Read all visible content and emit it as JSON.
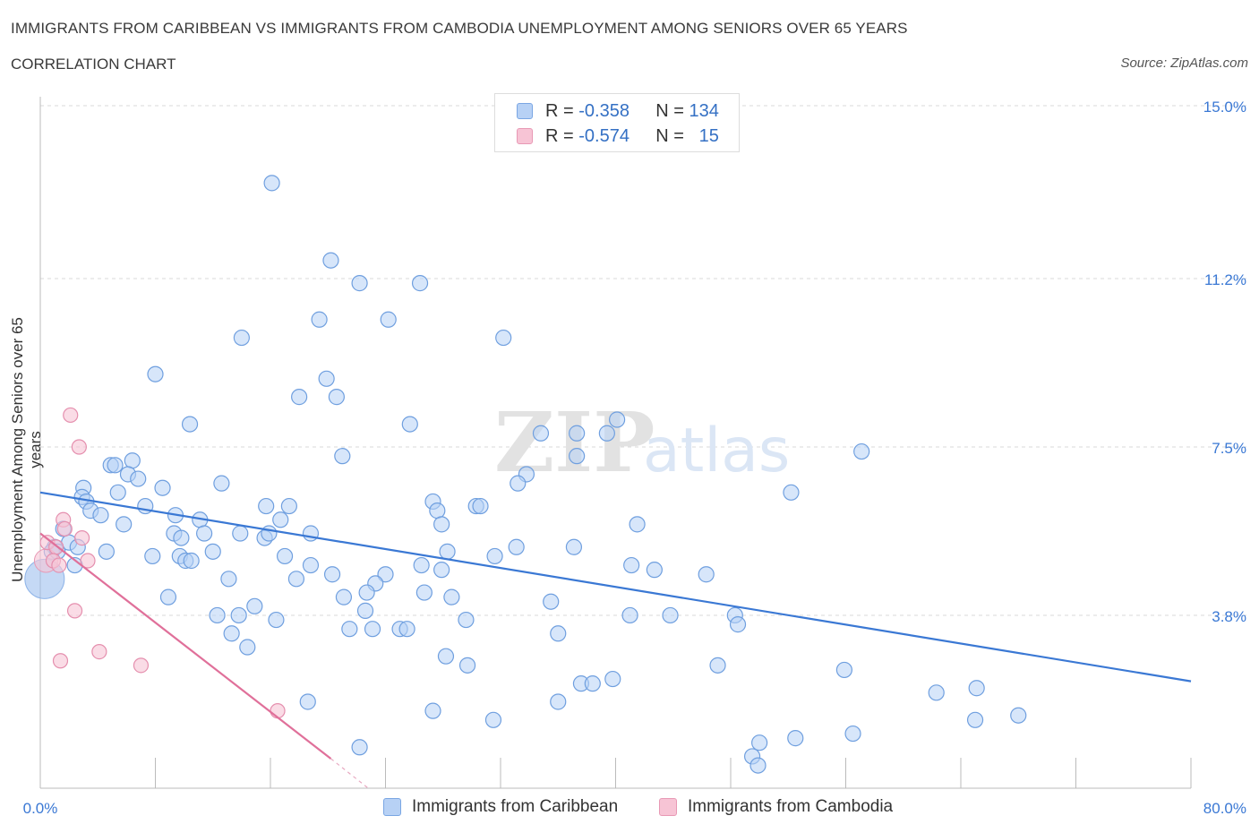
{
  "header": {
    "title": "IMMIGRANTS FROM CARIBBEAN VS IMMIGRANTS FROM CAMBODIA UNEMPLOYMENT AMONG SENIORS OVER 65 YEARS",
    "subtitle": "CORRELATION CHART",
    "source": "Source: ZipAtlas.com"
  },
  "watermark": {
    "zip": "ZIP",
    "atlas": "atlas"
  },
  "legend": {
    "r_label": "R =",
    "n_label": "N =",
    "items": [
      {
        "name": "Immigrants from Caribbean",
        "r": "-0.358",
        "n": "134",
        "fill": "#b7d1f5",
        "stroke": "#7aa6e3"
      },
      {
        "name": "Immigrants from Cambodia",
        "r": "-0.574",
        "n": "15",
        "fill": "#f7c4d5",
        "stroke": "#e899b5"
      }
    ]
  },
  "chart_data": {
    "type": "scatter",
    "ylabel": "Unemployment Among Seniors over 65 years",
    "xlim": [
      0,
      80
    ],
    "ylim": [
      0,
      15
    ],
    "x_tick_labels": [
      "0.0%",
      "80.0%"
    ],
    "y_ticks": [
      {
        "value": 3.8,
        "label": "3.8%"
      },
      {
        "value": 7.5,
        "label": "7.5%"
      },
      {
        "value": 11.2,
        "label": "11.2%"
      },
      {
        "value": 15.0,
        "label": "15.0%"
      }
    ],
    "grid": true,
    "legend_position": "top-center",
    "colors": {
      "caribbean": "#3a78d4",
      "cambodia": "#e0709a"
    },
    "series": [
      {
        "name": "Immigrants from Caribbean",
        "trend": {
          "x": [
            0,
            80
          ],
          "y": [
            6.5,
            2.35
          ]
        },
        "points": [
          [
            16.1,
            13.3
          ],
          [
            20.2,
            11.6
          ],
          [
            22.2,
            11.1
          ],
          [
            26.4,
            11.1
          ],
          [
            19.4,
            10.3
          ],
          [
            24.2,
            10.3
          ],
          [
            14.0,
            9.9
          ],
          [
            32.2,
            9.9
          ],
          [
            8.0,
            9.1
          ],
          [
            19.9,
            9.0
          ],
          [
            18.0,
            8.6
          ],
          [
            20.6,
            8.6
          ],
          [
            10.4,
            8.0
          ],
          [
            25.7,
            8.0
          ],
          [
            40.1,
            8.1
          ],
          [
            34.8,
            7.8
          ],
          [
            37.3,
            7.8
          ],
          [
            39.4,
            7.8
          ],
          [
            57.1,
            7.4
          ],
          [
            21.0,
            7.3
          ],
          [
            37.3,
            7.3
          ],
          [
            6.4,
            7.2
          ],
          [
            4.9,
            7.1
          ],
          [
            5.2,
            7.1
          ],
          [
            6.1,
            6.9
          ],
          [
            33.8,
            6.9
          ],
          [
            6.8,
            6.8
          ],
          [
            12.6,
            6.7
          ],
          [
            33.2,
            6.7
          ],
          [
            3.0,
            6.6
          ],
          [
            8.5,
            6.6
          ],
          [
            52.2,
            6.5
          ],
          [
            2.9,
            6.4
          ],
          [
            5.4,
            6.5
          ],
          [
            3.2,
            6.3
          ],
          [
            27.3,
            6.3
          ],
          [
            30.3,
            6.2
          ],
          [
            15.7,
            6.2
          ],
          [
            17.3,
            6.2
          ],
          [
            27.6,
            6.1
          ],
          [
            30.6,
            6.2
          ],
          [
            3.5,
            6.1
          ],
          [
            4.2,
            6.0
          ],
          [
            7.3,
            6.2
          ],
          [
            9.4,
            6.0
          ],
          [
            11.1,
            5.9
          ],
          [
            16.7,
            5.9
          ],
          [
            5.8,
            5.8
          ],
          [
            27.9,
            5.8
          ],
          [
            41.5,
            5.8
          ],
          [
            1.6,
            5.7
          ],
          [
            9.3,
            5.6
          ],
          [
            9.8,
            5.5
          ],
          [
            11.4,
            5.6
          ],
          [
            13.9,
            5.6
          ],
          [
            15.6,
            5.5
          ],
          [
            15.9,
            5.6
          ],
          [
            18.8,
            5.6
          ],
          [
            1.0,
            5.3
          ],
          [
            2.0,
            5.4
          ],
          [
            2.6,
            5.3
          ],
          [
            4.6,
            5.2
          ],
          [
            7.8,
            5.1
          ],
          [
            9.7,
            5.1
          ],
          [
            10.1,
            5.0
          ],
          [
            10.5,
            5.0
          ],
          [
            12.0,
            5.2
          ],
          [
            17.0,
            5.1
          ],
          [
            28.3,
            5.2
          ],
          [
            31.6,
            5.1
          ],
          [
            33.1,
            5.3
          ],
          [
            37.1,
            5.3
          ],
          [
            0.8,
            5.2
          ],
          [
            1.2,
            5.2
          ],
          [
            2.4,
            4.9
          ],
          [
            18.8,
            4.9
          ],
          [
            24.0,
            4.7
          ],
          [
            26.5,
            4.9
          ],
          [
            27.9,
            4.8
          ],
          [
            41.1,
            4.9
          ],
          [
            42.7,
            4.8
          ],
          [
            46.3,
            4.7
          ],
          [
            13.1,
            4.6
          ],
          [
            17.8,
            4.6
          ],
          [
            20.3,
            4.7
          ],
          [
            23.3,
            4.5
          ],
          [
            26.7,
            4.3
          ],
          [
            28.6,
            4.2
          ],
          [
            8.9,
            4.2
          ],
          [
            21.1,
            4.2
          ],
          [
            22.7,
            4.3
          ],
          [
            35.5,
            4.1
          ],
          [
            12.3,
            3.8
          ],
          [
            13.8,
            3.8
          ],
          [
            14.9,
            4.0
          ],
          [
            16.4,
            3.7
          ],
          [
            22.6,
            3.9
          ],
          [
            29.6,
            3.7
          ],
          [
            41.0,
            3.8
          ],
          [
            43.8,
            3.8
          ],
          [
            48.3,
            3.8
          ],
          [
            48.5,
            3.6
          ],
          [
            13.3,
            3.4
          ],
          [
            21.5,
            3.5
          ],
          [
            23.1,
            3.5
          ],
          [
            25.0,
            3.5
          ],
          [
            25.5,
            3.5
          ],
          [
            36.0,
            3.4
          ],
          [
            14.4,
            3.1
          ],
          [
            28.2,
            2.9
          ],
          [
            29.7,
            2.7
          ],
          [
            47.1,
            2.7
          ],
          [
            55.9,
            2.6
          ],
          [
            37.6,
            2.3
          ],
          [
            38.4,
            2.3
          ],
          [
            39.8,
            2.4
          ],
          [
            36.0,
            1.9
          ],
          [
            18.6,
            1.9
          ],
          [
            27.3,
            1.7
          ],
          [
            62.3,
            2.1
          ],
          [
            65.1,
            2.2
          ],
          [
            31.5,
            1.5
          ],
          [
            65.0,
            1.5
          ],
          [
            68.0,
            1.6
          ],
          [
            22.2,
            0.9
          ],
          [
            50.0,
            1.0
          ],
          [
            52.5,
            1.1
          ],
          [
            49.5,
            0.7
          ],
          [
            49.9,
            0.5
          ],
          [
            56.5,
            1.2
          ]
        ],
        "big_point": [
          0.3,
          4.6
        ]
      },
      {
        "name": "Immigrants from Cambodia",
        "trend": {
          "x": [
            0,
            20.2
          ],
          "y": [
            5.6,
            0.65
          ]
        },
        "trend_dashed": {
          "x": [
            20.2,
            22.8
          ],
          "y": [
            0.65,
            0.0
          ]
        },
        "points": [
          [
            2.1,
            8.2
          ],
          [
            2.7,
            7.5
          ],
          [
            1.6,
            5.9
          ],
          [
            0.5,
            5.4
          ],
          [
            1.1,
            5.3
          ],
          [
            1.7,
            5.7
          ],
          [
            2.9,
            5.5
          ],
          [
            0.9,
            5.0
          ],
          [
            1.3,
            4.9
          ],
          [
            3.3,
            5.0
          ],
          [
            2.4,
            3.9
          ],
          [
            4.1,
            3.0
          ],
          [
            1.4,
            2.8
          ],
          [
            7.0,
            2.7
          ],
          [
            16.5,
            1.7
          ]
        ],
        "big_point": [
          0.4,
          5.0
        ]
      }
    ]
  }
}
